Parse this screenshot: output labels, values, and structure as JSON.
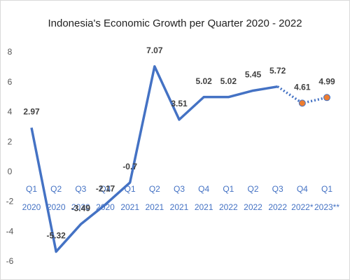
{
  "chart_data": {
    "type": "line",
    "title": "Indonesia's Economic Growth per Quarter 2020 - 2022",
    "categories": [
      [
        "Q1",
        "2020"
      ],
      [
        "Q2",
        "2020"
      ],
      [
        "Q3",
        "2020"
      ],
      [
        "Q4",
        "2020"
      ],
      [
        "Q1",
        "2021"
      ],
      [
        "Q2",
        "2021"
      ],
      [
        "Q3",
        "2021"
      ],
      [
        "Q4",
        "2021"
      ],
      [
        "Q1",
        "2022"
      ],
      [
        "Q2",
        "2022"
      ],
      [
        "Q3",
        "2022"
      ],
      [
        "Q4",
        "2022*"
      ],
      [
        "Q1",
        "2023**"
      ]
    ],
    "values": [
      2.97,
      -5.32,
      -3.49,
      -2.17,
      -0.7,
      7.07,
      3.51,
      5.02,
      5.02,
      5.45,
      5.72,
      4.61,
      4.99
    ],
    "color": "#4472c4",
    "marker_color": "#ed7d31",
    "dotted_from": 10,
    "ylim": [
      -6,
      8
    ],
    "yticks": [
      -6,
      -4,
      -2,
      0,
      2,
      4,
      6,
      8
    ],
    "grid": false
  }
}
